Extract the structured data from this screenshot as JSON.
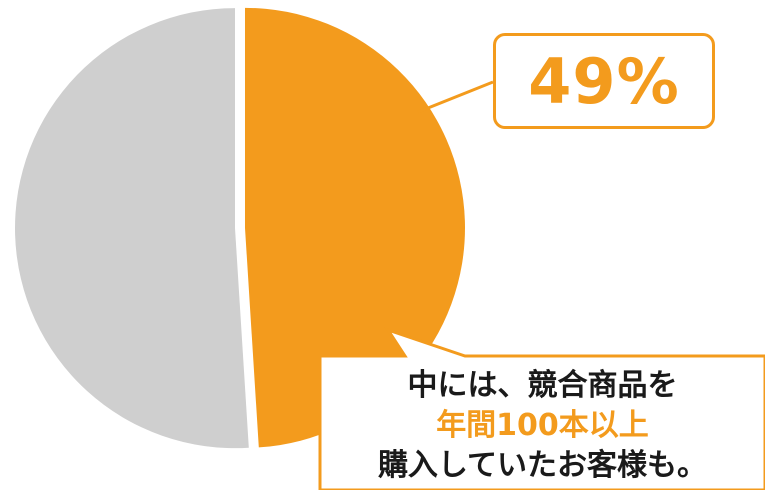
{
  "colors": {
    "accent": "#f39b1d",
    "rest": "#cfcfcf",
    "text": "#1a1a1a",
    "background": "#ffffff"
  },
  "callout": {
    "percent_label": "49%",
    "note_line1": "中には、競合商品を",
    "note_line2": "年間100本以上",
    "note_line3": "購入していたお客様も。"
  },
  "chart_data": {
    "type": "pie",
    "slices": [
      {
        "value": 49,
        "color": "#f39b1d",
        "label": "49%"
      },
      {
        "value": 51,
        "color": "#cfcfcf"
      }
    ]
  }
}
